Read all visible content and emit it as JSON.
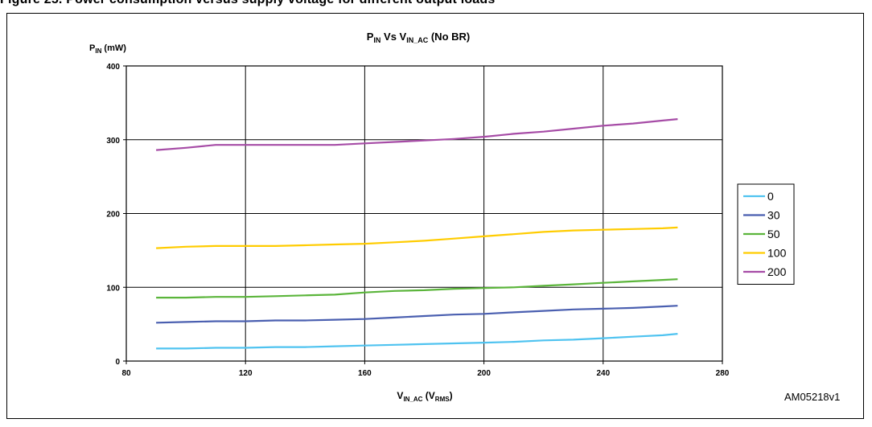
{
  "page": {
    "figure_heading": "Figure 25. Power consumption versus supply voltage for different output loads",
    "reference_code": "AM05218v1"
  },
  "chart_data": {
    "type": "line",
    "title": {
      "main": "P",
      "sub": "IN",
      "rest": " Vs V",
      "sub2": "IN_AC",
      "tail": " (No BR)"
    },
    "ylabel": {
      "main": "P",
      "sub": "IN",
      "tail": " (mW)"
    },
    "xlabel": {
      "main": "V",
      "sub": "IN_AC",
      "mid": " (V",
      "sub2": "RMS",
      "tail": ")"
    },
    "xlim": [
      80,
      280
    ],
    "ylim": [
      0,
      400
    ],
    "x_ticks": [
      80,
      120,
      160,
      200,
      240,
      280
    ],
    "y_ticks": [
      0,
      100,
      200,
      300,
      400
    ],
    "grid": true,
    "legend_position": "right",
    "x": [
      90,
      100,
      110,
      120,
      130,
      140,
      150,
      160,
      170,
      180,
      190,
      200,
      210,
      220,
      230,
      240,
      250,
      260,
      265
    ],
    "series": [
      {
        "name": "0",
        "color": "#4fc3f0",
        "values": [
          17,
          17,
          18,
          18,
          19,
          19,
          20,
          21,
          22,
          23,
          24,
          25,
          26,
          28,
          29,
          31,
          33,
          35,
          37
        ]
      },
      {
        "name": "30",
        "color": "#4a5fb0",
        "values": [
          52,
          53,
          54,
          54,
          55,
          55,
          56,
          57,
          59,
          61,
          63,
          64,
          66,
          68,
          70,
          71,
          72,
          74,
          75
        ]
      },
      {
        "name": "50",
        "color": "#5bb53b",
        "values": [
          86,
          86,
          87,
          87,
          88,
          89,
          90,
          93,
          95,
          96,
          98,
          99,
          100,
          102,
          104,
          106,
          108,
          110,
          111
        ]
      },
      {
        "name": "100",
        "color": "#ffcc00",
        "values": [
          153,
          155,
          156,
          156,
          156,
          157,
          158,
          159,
          161,
          163,
          166,
          169,
          172,
          175,
          177,
          178,
          179,
          180,
          181
        ]
      },
      {
        "name": "200",
        "color": "#a64ca6",
        "values": [
          286,
          289,
          293,
          293,
          293,
          293,
          293,
          295,
          297,
          299,
          301,
          304,
          308,
          311,
          315,
          319,
          322,
          326,
          328
        ]
      }
    ]
  }
}
